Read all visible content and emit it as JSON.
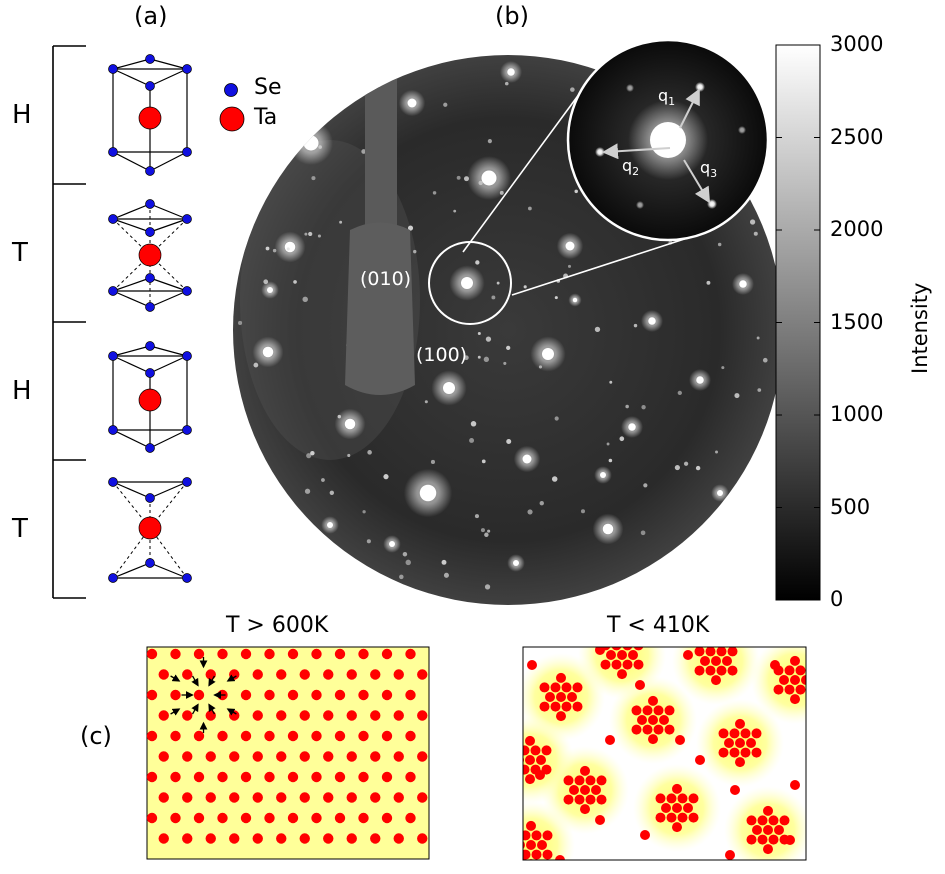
{
  "panel_labels": {
    "a": "(a)",
    "b": "(b)",
    "c": "(c)"
  },
  "structure": {
    "stack": [
      "H",
      "T",
      "H",
      "T"
    ],
    "legend": [
      {
        "label": "Se",
        "color": "#1010e0"
      },
      {
        "label": "Ta",
        "color": "#ff0000"
      }
    ]
  },
  "diffraction": {
    "spot_labels": {
      "s010": "(010)",
      "s100": "(100)"
    },
    "q_vectors": {
      "q1": "q1",
      "q2": "q2",
      "q3": "q3"
    }
  },
  "colorbar": {
    "title": "Intensity",
    "ticks": [
      "3000",
      "2500",
      "2000",
      "1500",
      "1000",
      "500",
      "0"
    ],
    "range": [
      0,
      3000
    ]
  },
  "bottom_panels": {
    "left_title": "T > 600K",
    "right_title": "T < 410K"
  },
  "colors": {
    "atom_red": "#ff0000",
    "atom_blue": "#1010e0",
    "yellow_bg": "#ffff99"
  }
}
